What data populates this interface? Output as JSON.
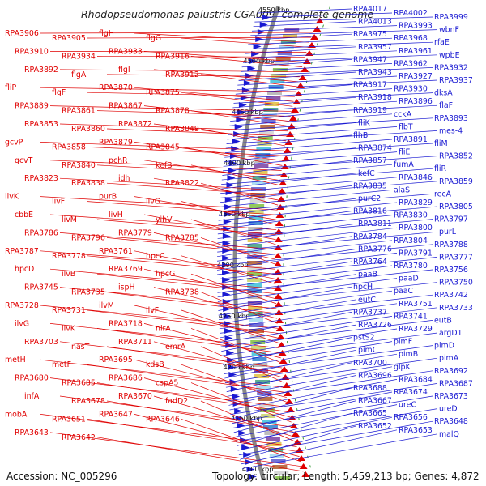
{
  "title": "Rhodopseudomonas palustris CGA009, complete genome",
  "footer": {
    "accession": "Accession: NC_005296",
    "topology": "Topology: circular; Length: 5,459,213 bp; Genes: 4,872"
  },
  "colors": {
    "reverse_strand": "#e00000",
    "forward_strand": "#1a1ad2",
    "backbone": "#888888"
  },
  "ticks": [
    "4550 kbp",
    "4500 kbp",
    "4450 kbp",
    "4400 kbp",
    "4350 kbp",
    "4300 kbp",
    "4250 kbp",
    "4200 kbp",
    "4150 kbp",
    "4100 kbp"
  ],
  "left_labels": [
    "RPA3906",
    "RPA3905",
    "flgH",
    "flgG",
    "RPA3910",
    "RPA3934",
    "RPA3933",
    "RPA3916",
    "RPA3892",
    "flgA",
    "flgI",
    "RPA3912",
    "fliP",
    "flgF",
    "RPA3870",
    "RPA3875",
    "RPA3889",
    "RPA3861",
    "RPA3867",
    "RPA3878",
    "RPA3853",
    "RPA3860",
    "RPA3872",
    "RPA3849",
    "gcvP",
    "RPA3858",
    "RPA3879",
    "RPA3845",
    "gcvT",
    "RPA3840",
    "pchR",
    "kefB",
    "RPA3823",
    "RPA3838",
    "idh",
    "RPA3822",
    "livK",
    "livF",
    "purB",
    "livG",
    "cbbE",
    "livM",
    "livH",
    "yihV",
    "RPA3786",
    "RPA3796",
    "RPA3779",
    "RPA3785",
    "RPA3787",
    "RPA3778",
    "RPA3761",
    "hpcC",
    "hpcD",
    "ilvB",
    "RPA3769",
    "hpcG",
    "RPA3745",
    "RPA3735",
    "ispH",
    "RPA3738",
    "RPA3728",
    "RPA3731",
    "ilvM",
    "ilvF",
    "ilvG",
    "ilvK",
    "RPA3718",
    "nirA",
    "RPA3703",
    "nasT",
    "RPA3711",
    "emrA",
    "metH",
    "metF",
    "RPA3695",
    "kdsB",
    "RPA3680",
    "RPA3685",
    "RPA3686",
    "cspA5",
    "infA",
    "RPA3678",
    "RPA3670",
    "fadD2",
    "mobA",
    "RPA3651",
    "RPA3647",
    "RPA3646",
    "RPA3643",
    "RPA3642"
  ],
  "right_labels": [
    "RPA4017",
    "RPA4002",
    "RPA3999",
    "RPA4013",
    "RPA3993",
    "wbnF",
    "RPA3975",
    "RPA3968",
    "rfaE",
    "RPA3957",
    "RPA3961",
    "wpbE",
    "RPA3947",
    "RPA3962",
    "RPA3932",
    "RPA3943",
    "RPA3927",
    "RPA3937",
    "RPA3917",
    "RPA3930",
    "dksA",
    "RPA3918",
    "RPA3896",
    "flaF",
    "RPA3919",
    "cckA",
    "RPA3893",
    "fliK",
    "flbT",
    "mes-4",
    "flhB",
    "RPA3891",
    "fliM",
    "RPA3874",
    "fliE",
    "RPA3852",
    "RPA3857",
    "fumA",
    "fliR",
    "kefC",
    "RPA3846",
    "RPA3859",
    "RPA3835",
    "alaS",
    "recA",
    "purC2",
    "RPA3829",
    "RPA3805",
    "RPA3816",
    "RPA3830",
    "RPA3797",
    "RPA3811",
    "RPA3800",
    "purL",
    "RPA3784",
    "RPA3804",
    "RPA3788",
    "RPA3776",
    "RPA3791",
    "RPA3777",
    "RPA3764",
    "RPA3780",
    "RPA3756",
    "paaB",
    "paaD",
    "RPA3750",
    "hpcH",
    "paaC",
    "RPA3742",
    "eutC",
    "RPA3751",
    "RPA3733",
    "RPA3737",
    "RPA3741",
    "eutB",
    "RPA3726",
    "RPA3729",
    "argD1",
    "pstS2",
    "pimF",
    "pimD",
    "pimC",
    "pimB",
    "pimA",
    "RPA3700",
    "glpK",
    "RPA3692",
    "RPA3696",
    "RPA3684",
    "RPA3687",
    "RPA3688",
    "RPA3674",
    "RPA3673",
    "RPA3667",
    "ureC",
    "ureD",
    "RPA3665",
    "RPA3656",
    "RPA3648",
    "RPA3652",
    "RPA3653",
    "malQ"
  ]
}
